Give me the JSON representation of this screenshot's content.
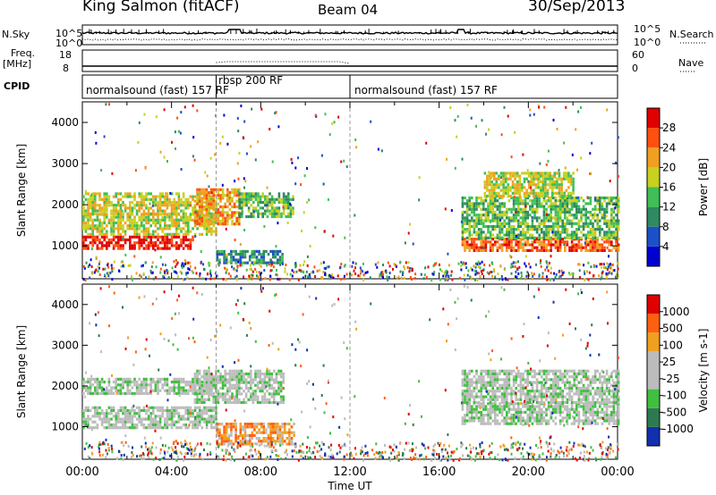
{
  "header": {
    "station": "King Salmon (fitACF)",
    "beam": "Beam 04",
    "date": "30/Sep/2013"
  },
  "strip_panels": {
    "nsky_label": "N.Sky",
    "nsky_ticks": [
      "10^5",
      "10^0"
    ],
    "nsearch_label": "N.Search",
    "nsearch_ticks": [
      "10^5",
      "10^0"
    ],
    "freq_label": "Freq.",
    "freq_unit": "[MHz]",
    "freq_ticks": [
      "18",
      "8"
    ],
    "nave_label": "Nave",
    "nave_ticks": [
      "60",
      "0"
    ],
    "cpid_label": "CPID",
    "cpid_segments": [
      {
        "label": "normalsound (fast) 157 RF",
        "start_hour": 0,
        "end_hour": 6
      },
      {
        "label": "rbsp 200 RF",
        "start_hour": 6,
        "end_hour": 12
      },
      {
        "label": "normalsound (fast) 157 RF",
        "start_hour": 12,
        "end_hour": 24
      }
    ]
  },
  "chart_data": [
    {
      "type": "heatmap",
      "name": "power",
      "ylabel": "Slant Range [km]",
      "xlim": [
        0,
        24
      ],
      "ylim": [
        200,
        4500
      ],
      "yticks": [
        "1000",
        "2000",
        "3000",
        "4000"
      ],
      "colorbar_label": "Power [dB]",
      "colorbar_ticks": [
        "28",
        "24",
        "20",
        "16",
        "12",
        "8",
        "4"
      ],
      "colors": [
        "#0000d0",
        "#1c50c8",
        "#2e8a60",
        "#3fbf55",
        "#c8d020",
        "#f0a020",
        "#ff5010",
        "#e00000"
      ],
      "bands": [
        {
          "start_hour": 0.0,
          "end_hour": 5.0,
          "range_low": 950,
          "range_high": 1250,
          "level": 7
        },
        {
          "start_hour": 0.0,
          "end_hour": 6.0,
          "range_low": 1250,
          "range_high": 1800,
          "level": 4
        },
        {
          "start_hour": 0.0,
          "end_hour": 6.0,
          "range_low": 1800,
          "range_high": 2300,
          "level": 4
        },
        {
          "start_hour": 5.0,
          "end_hour": 7.0,
          "range_low": 1500,
          "range_high": 2400,
          "level": 5
        },
        {
          "start_hour": 7.0,
          "end_hour": 9.5,
          "range_low": 1700,
          "range_high": 2300,
          "level": 3
        },
        {
          "start_hour": 6.0,
          "end_hour": 9.0,
          "range_low": 600,
          "range_high": 900,
          "level": 2
        },
        {
          "start_hour": 17.0,
          "end_hour": 24.0,
          "range_low": 900,
          "range_high": 1200,
          "level": 6
        },
        {
          "start_hour": 17.0,
          "end_hour": 24.0,
          "range_low": 1200,
          "range_high": 2200,
          "level": 3
        },
        {
          "start_hour": 18.0,
          "end_hour": 22.0,
          "range_low": 2200,
          "range_high": 2800,
          "level": 4
        }
      ]
    },
    {
      "type": "heatmap",
      "name": "velocity",
      "ylabel": "Slant Range [km]",
      "xlabel": "Time UT",
      "xlim": [
        0,
        24
      ],
      "ylim": [
        200,
        4500
      ],
      "xticks": [
        "00:00",
        "04:00",
        "08:00",
        "12:00",
        "16:00",
        "20:00",
        "00:00"
      ],
      "yticks": [
        "1000",
        "2000",
        "3000",
        "4000"
      ],
      "colorbar_label": "Velocity [m s-1]",
      "colorbar_ticks": [
        "1000",
        "500",
        "100",
        "25",
        "-25",
        "-100",
        "-500",
        "-1000"
      ],
      "colors": [
        "#1030b0",
        "#2e7a50",
        "#40bf40",
        "#bcbcbc",
        "#bcbcbc",
        "#f0a020",
        "#ff6010",
        "#e00000"
      ],
      "bands": [
        {
          "start_hour": 0.0,
          "end_hour": 6.0,
          "range_low": 1000,
          "range_high": 1500,
          "level": 3
        },
        {
          "start_hour": 0.0,
          "end_hour": 6.0,
          "range_low": 1800,
          "range_high": 2200,
          "level": 3
        },
        {
          "start_hour": 5.0,
          "end_hour": 9.0,
          "range_low": 1600,
          "range_high": 2400,
          "level": 3
        },
        {
          "start_hour": 6.0,
          "end_hour": 9.5,
          "range_low": 600,
          "range_high": 1100,
          "level": 5
        },
        {
          "start_hour": 17.0,
          "end_hour": 24.0,
          "range_low": 1100,
          "range_high": 1600,
          "level": 3
        },
        {
          "start_hour": 17.0,
          "end_hour": 24.0,
          "range_low": 1600,
          "range_high": 2400,
          "level": 3
        }
      ]
    }
  ]
}
